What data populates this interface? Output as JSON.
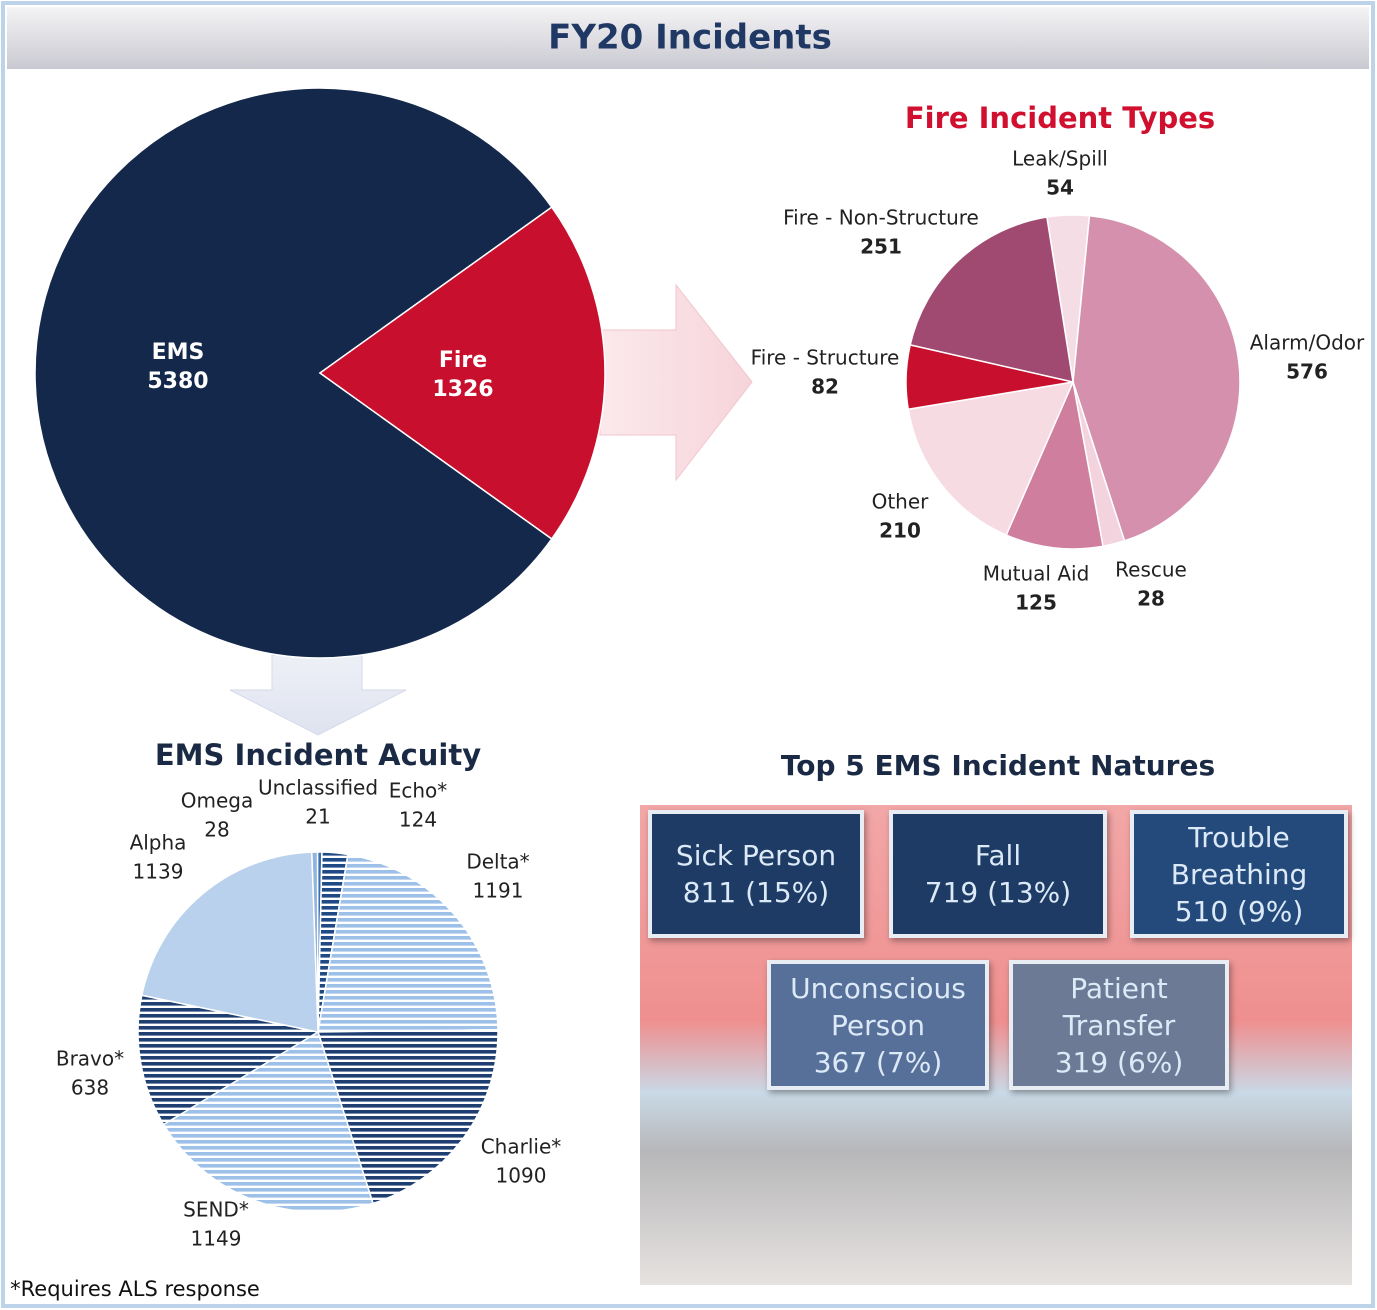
{
  "title": "FY20 Incidents",
  "chart_data": [
    {
      "type": "pie",
      "categories": [
        "EMS",
        "Fire"
      ],
      "values": [
        5380,
        1326
      ],
      "colors": [
        "#13284a",
        "#c8102e"
      ]
    },
    {
      "type": "pie",
      "title": "Fire Incident Types",
      "categories": [
        "Leak/Spill",
        "Alarm/Odor",
        "Rescue",
        "Mutual Aid",
        "Other",
        "Fire - Structure",
        "Fire - Non-Structure"
      ],
      "values": [
        54,
        576,
        28,
        125,
        210,
        82,
        251
      ],
      "colors": [
        "#f4dde4",
        "#d490ac",
        "#f2d3de",
        "#cf7e9e",
        "#f6dbe3",
        "#c8102e",
        "#a04a72"
      ]
    },
    {
      "type": "pie",
      "title": "EMS Incident Acuity",
      "categories": [
        "Omega",
        "Unclassified",
        "Echo*",
        "Delta*",
        "Charlie*",
        "SEND*",
        "Bravo*",
        "Alpha"
      ],
      "values": [
        28,
        21,
        124,
        1191,
        1090,
        1149,
        638,
        1139
      ],
      "colors": [
        "#8fb4de",
        "#3b6fb0",
        "#1f4a86",
        "#9dc0e8",
        "#1f3f73",
        "#9dc0e8",
        "#1f3f73",
        "#b9d1ec"
      ],
      "hatch": [
        false,
        false,
        true,
        true,
        true,
        true,
        true,
        false
      ]
    }
  ],
  "natures": {
    "title": "Top 5 EMS Incident Natures",
    "tiles": [
      {
        "name": "Sick Person",
        "text": "811 (15%)",
        "color": "#1d3b64"
      },
      {
        "name": "Fall",
        "text": "719 (13%)",
        "color": "#1d3b64"
      },
      {
        "name": "Trouble Breathing",
        "text": "510 (9%)",
        "color": "#244a7c"
      },
      {
        "name": "Unconscious Person",
        "text": "367 (7%)",
        "color": "#57709a"
      },
      {
        "name": "Patient Transfer",
        "text": "319 (6%)",
        "color": "#6c7a95"
      }
    ]
  },
  "footnote": "*Requires ALS response"
}
